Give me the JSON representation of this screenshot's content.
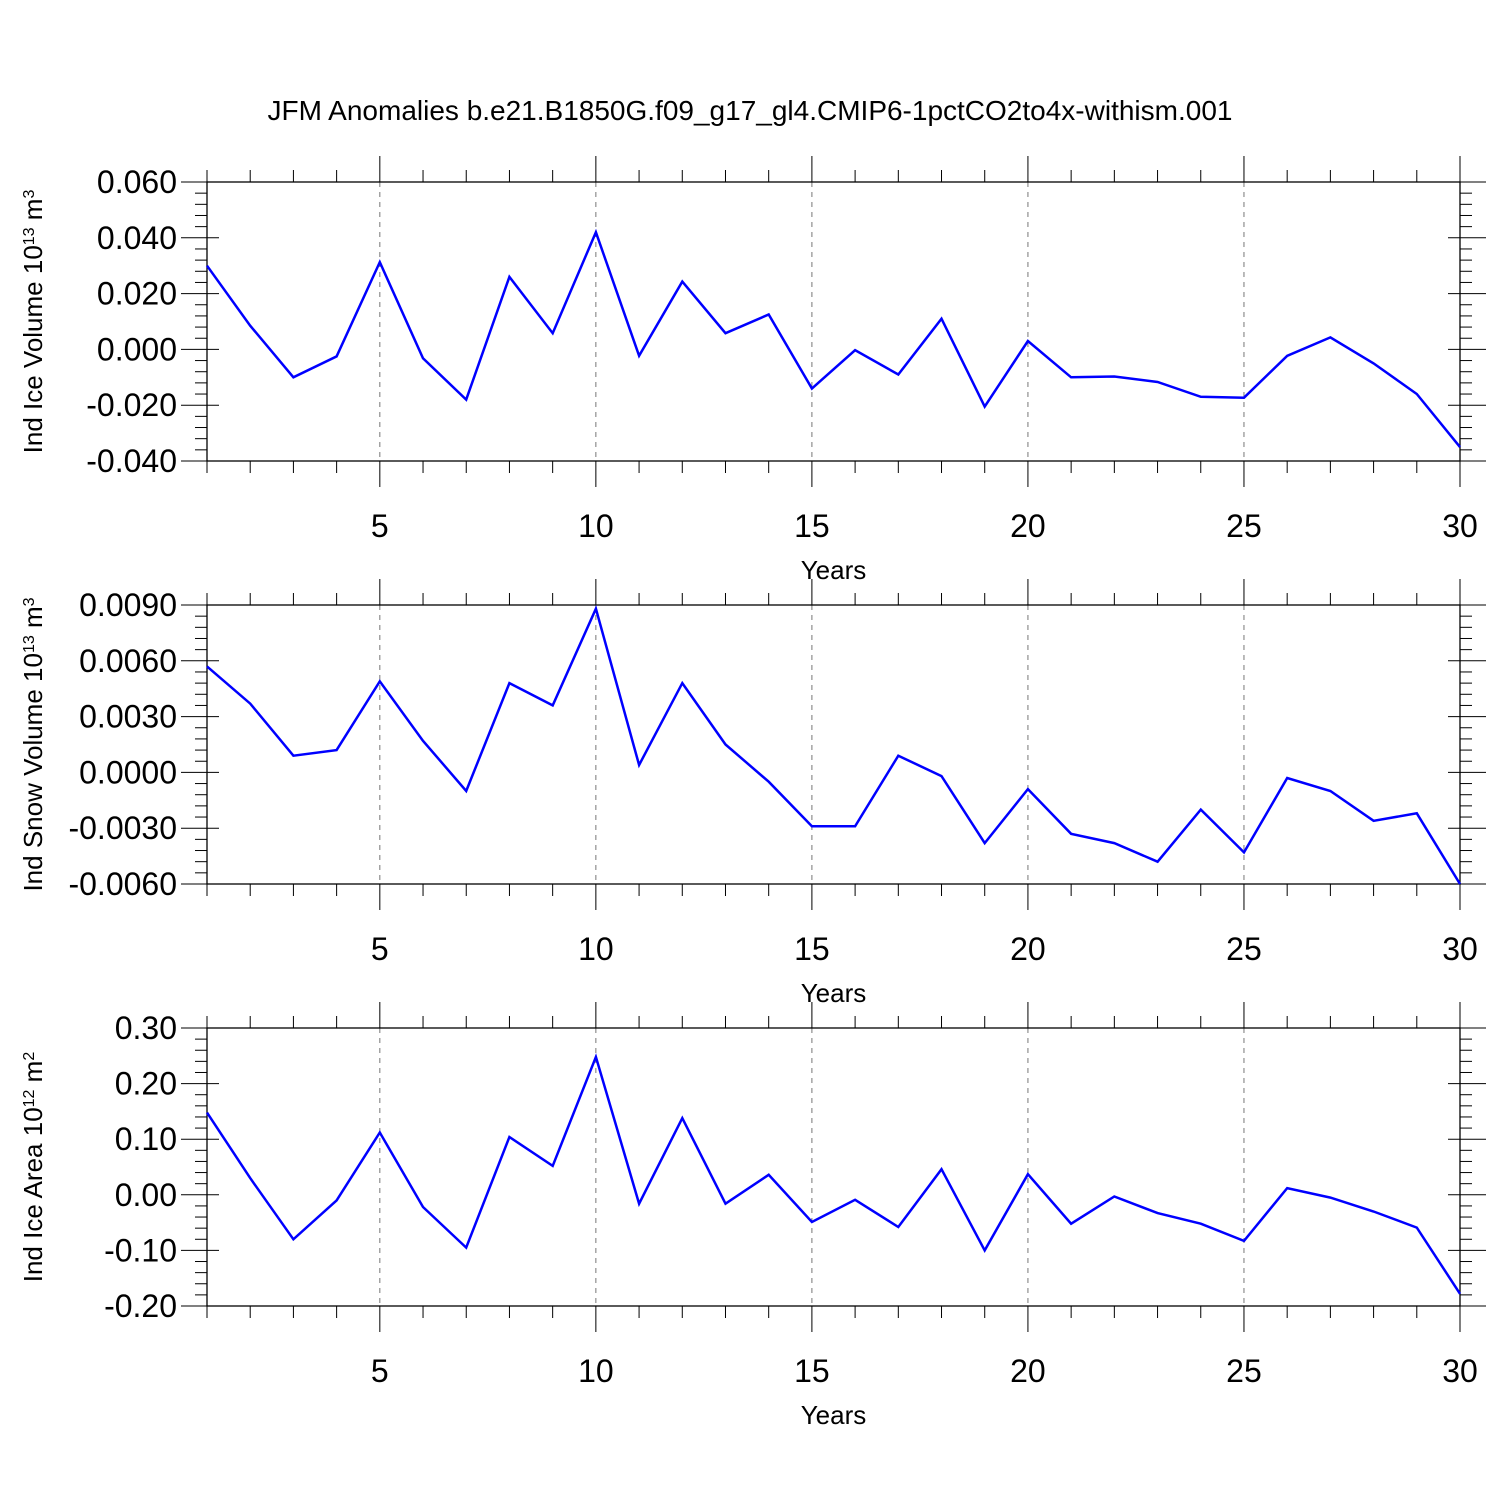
{
  "title": "JFM Anomalies b.e21.B1850G.f09_g17_gl4.CMIP6-1pctCO2to4x-withism.001",
  "colors": {
    "line": "#0000ff",
    "axis": "#000000",
    "grid": "#777777",
    "background": "#ffffff"
  },
  "chart_data": [
    {
      "type": "line",
      "ylabel": "Ind Ice Volume 10",
      "ylabel_exp": "13",
      "ylabel_unit": " m",
      "ylabel_unit_exp": "3",
      "xlabel": "Years",
      "xlim": [
        1,
        30
      ],
      "ylim": [
        -0.04,
        0.06
      ],
      "yticks": [
        -0.04,
        -0.02,
        0.0,
        0.02,
        0.04,
        0.06
      ],
      "ytick_labels": [
        "-0.040",
        "-0.020",
        "0.000",
        "0.020",
        "0.040",
        "0.060"
      ],
      "xticks": [
        5,
        10,
        15,
        20,
        25,
        30
      ],
      "xtick_labels": [
        "5",
        "10",
        "15",
        "20",
        "25",
        "30"
      ],
      "grid": "vertical dashed at major x ticks",
      "x": [
        1,
        2,
        3,
        4,
        5,
        6,
        7,
        8,
        9,
        10,
        11,
        12,
        13,
        14,
        15,
        16,
        17,
        18,
        19,
        20,
        21,
        22,
        23,
        24,
        25,
        26,
        27,
        28,
        29,
        30
      ],
      "values": [
        0.03,
        0.0085,
        -0.01,
        -0.0025,
        0.0313,
        -0.0032,
        -0.018,
        0.026,
        0.0058,
        0.042,
        -0.0023,
        0.0243,
        0.0058,
        0.0125,
        -0.014,
        -0.0003,
        -0.009,
        0.011,
        -0.0205,
        0.003,
        -0.01,
        -0.0097,
        -0.0117,
        -0.017,
        -0.0173,
        -0.0023,
        0.0043,
        -0.005,
        -0.016,
        -0.035
      ]
    },
    {
      "type": "line",
      "ylabel": "Ind Snow Volume 10",
      "ylabel_exp": "13",
      "ylabel_unit": " m",
      "ylabel_unit_exp": "3",
      "xlabel": "Years",
      "xlim": [
        1,
        30
      ],
      "ylim": [
        -0.006,
        0.009
      ],
      "yticks": [
        -0.006,
        -0.003,
        0.0,
        0.003,
        0.006,
        0.009
      ],
      "ytick_labels": [
        "-0.0060",
        "-0.0030",
        "0.0000",
        "0.0030",
        "0.0060",
        "0.0090"
      ],
      "xticks": [
        5,
        10,
        15,
        20,
        25,
        30
      ],
      "xtick_labels": [
        "5",
        "10",
        "15",
        "20",
        "25",
        "30"
      ],
      "grid": "vertical dashed at major x ticks",
      "x": [
        1,
        2,
        3,
        4,
        5,
        6,
        7,
        8,
        9,
        10,
        11,
        12,
        13,
        14,
        15,
        16,
        17,
        18,
        19,
        20,
        21,
        22,
        23,
        24,
        25,
        26,
        27,
        28,
        29,
        30
      ],
      "values": [
        0.0057,
        0.0037,
        0.0009,
        0.0012,
        0.0049,
        0.0017,
        -0.001,
        0.0048,
        0.0036,
        0.0088,
        0.0004,
        0.0048,
        0.0015,
        -0.0005,
        -0.0029,
        -0.0029,
        0.0009,
        -0.0002,
        -0.0038,
        -0.0009,
        -0.0033,
        -0.0038,
        -0.0048,
        -0.002,
        -0.0043,
        -0.0003,
        -0.001,
        -0.0026,
        -0.0022,
        -0.006
      ]
    },
    {
      "type": "line",
      "ylabel": "Ind Ice Area 10",
      "ylabel_exp": "12",
      "ylabel_unit": " m",
      "ylabel_unit_exp": "2",
      "xlabel": "Years",
      "xlim": [
        1,
        30
      ],
      "ylim": [
        -0.2,
        0.3
      ],
      "yticks": [
        -0.2,
        -0.1,
        0.0,
        0.1,
        0.2,
        0.3
      ],
      "ytick_labels": [
        "-0.20",
        "-0.10",
        "0.00",
        "0.10",
        "0.20",
        "0.30"
      ],
      "xticks": [
        5,
        10,
        15,
        20,
        25,
        30
      ],
      "xtick_labels": [
        "5",
        "10",
        "15",
        "20",
        "25",
        "30"
      ],
      "grid": "vertical dashed at major x ticks",
      "x": [
        1,
        2,
        3,
        4,
        5,
        6,
        7,
        8,
        9,
        10,
        11,
        12,
        13,
        14,
        15,
        16,
        17,
        18,
        19,
        20,
        21,
        22,
        23,
        24,
        25,
        26,
        27,
        28,
        29,
        30
      ],
      "values": [
        0.148,
        0.03,
        -0.08,
        -0.01,
        0.112,
        -0.022,
        -0.095,
        0.104,
        0.052,
        0.248,
        -0.016,
        0.138,
        -0.016,
        0.036,
        -0.049,
        -0.009,
        -0.058,
        0.046,
        -0.1,
        0.037,
        -0.052,
        -0.003,
        -0.033,
        -0.052,
        -0.083,
        0.012,
        -0.005,
        -0.03,
        -0.059,
        -0.178
      ]
    }
  ]
}
